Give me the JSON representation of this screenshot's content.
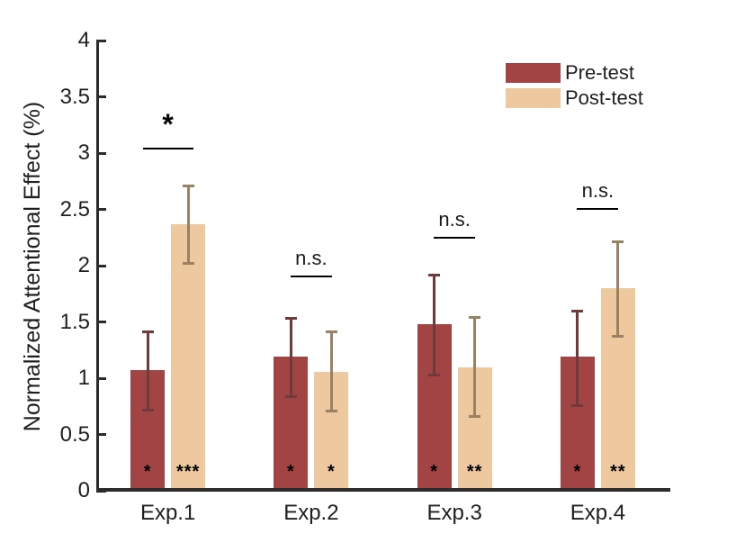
{
  "chart_data": {
    "type": "bar",
    "title": "",
    "xlabel": "",
    "ylabel": "Normalized Attentional Effect (%)",
    "ylim": [
      0,
      4
    ],
    "ytick_labels": [
      "0",
      "0.5",
      "1",
      "1.5",
      "2",
      "2.5",
      "3",
      "3.5",
      "4"
    ],
    "grid": false,
    "categories": [
      "Exp.1",
      "Exp.2",
      "Exp.3",
      "Exp.4"
    ],
    "series": [
      {
        "name": "Pre-test",
        "color": "#A24444",
        "error_color": "#713A3A",
        "values": [
          1.07,
          1.19,
          1.48,
          1.19
        ],
        "err_low": [
          0.72,
          0.84,
          1.03,
          0.76
        ],
        "err_high": [
          1.41,
          1.53,
          1.92,
          1.6
        ],
        "bar_stars": [
          "*",
          "*",
          "*",
          "*"
        ]
      },
      {
        "name": "Post-test",
        "color": "#EEC89E",
        "error_color": "#9A8164",
        "values": [
          2.37,
          1.06,
          1.1,
          1.8
        ],
        "err_low": [
          2.02,
          0.71,
          0.66,
          1.37
        ],
        "err_high": [
          2.71,
          1.41,
          1.54,
          2.21
        ],
        "bar_stars": [
          "***",
          "*",
          "**",
          "**"
        ]
      }
    ],
    "comparisons": [
      {
        "category": "Exp.1",
        "label": "*",
        "style": "star",
        "line_y": 3.05
      },
      {
        "category": "Exp.2",
        "label": "n.s.",
        "style": "ns",
        "line_y": 1.91
      },
      {
        "category": "Exp.3",
        "label": "n.s.",
        "style": "ns",
        "line_y": 2.26
      },
      {
        "category": "Exp.4",
        "label": "n.s.",
        "style": "ns",
        "line_y": 2.51
      }
    ],
    "legend": {
      "position": "top-right",
      "entries": [
        "Pre-test",
        "Post-test"
      ]
    },
    "axis_color": "#2b2b2b",
    "significance_color": "#000000"
  }
}
